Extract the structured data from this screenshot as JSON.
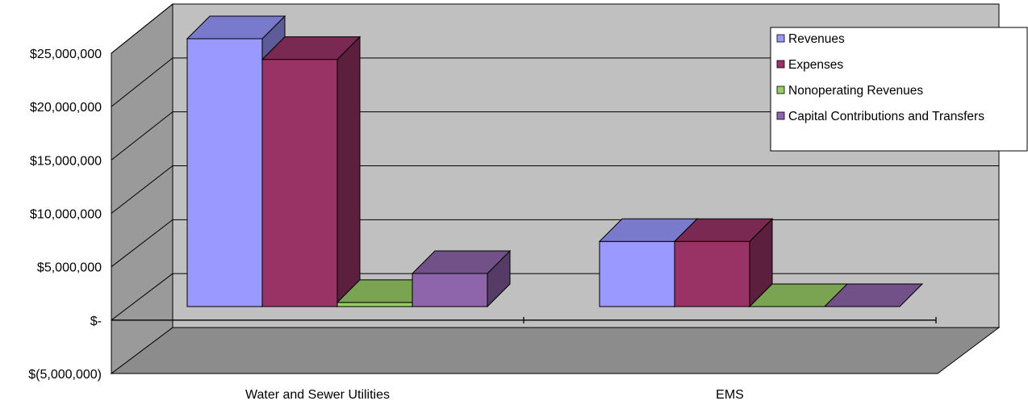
{
  "chart_data": {
    "type": "bar",
    "style": "3d-clustered-column",
    "categories": [
      "Water and Sewer Utilities",
      "EMS"
    ],
    "series": [
      {
        "name": "Revenues",
        "values": [
          25900000,
          6300000
        ],
        "color": "#9999FF"
      },
      {
        "name": "Expenses",
        "values": [
          23900000,
          6300000
        ],
        "color": "#993366"
      },
      {
        "name": "Nonoperating Revenues",
        "values": [
          400000,
          0
        ],
        "color": "#99CC66"
      },
      {
        "name": "Capital Contributions and Transfers",
        "values": [
          3200000,
          0
        ],
        "color": "#8E64AA"
      }
    ],
    "ylim": [
      -5000000,
      25000000
    ],
    "yticks": [
      -5000000,
      0,
      5000000,
      10000000,
      15000000,
      20000000,
      25000000
    ],
    "ytick_labels": [
      "$(5,000,000)",
      "$-",
      "$5,000,000",
      "$10,000,000",
      "$15,000,000",
      "$20,000,000",
      "$25,000,000"
    ],
    "legend_position": "top-right",
    "grid": true,
    "colors": {
      "wall": "#C0C0C0",
      "side_wall": "#9A9A9A",
      "floor": "#8C8C8C",
      "gridline": "#000000"
    }
  }
}
